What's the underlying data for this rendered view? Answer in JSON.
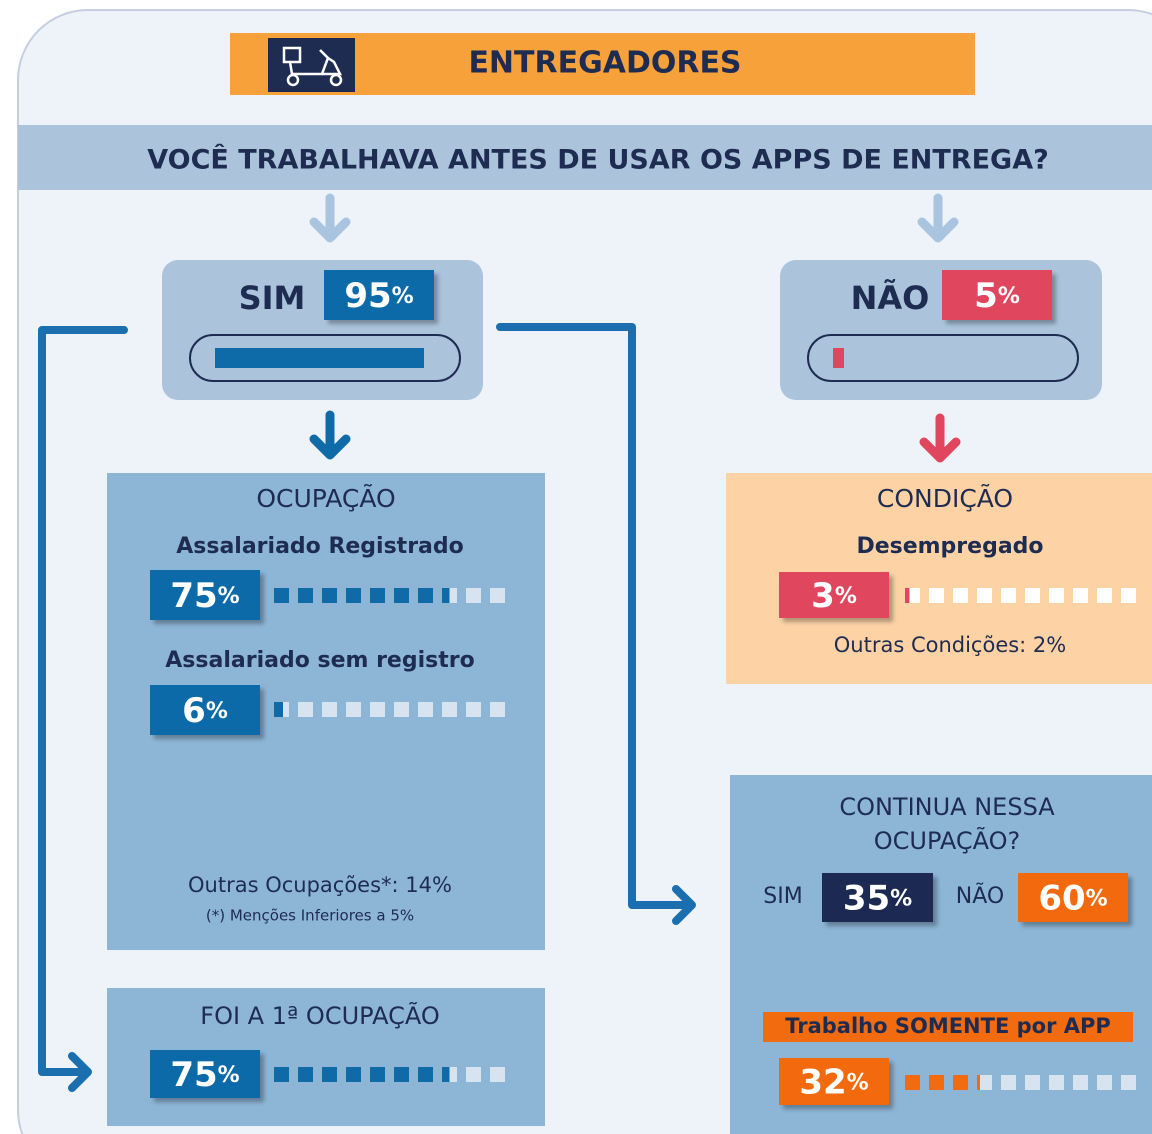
{
  "header": {
    "title": "ENTREGADORES"
  },
  "question": "VOCÊ TRABALHAVA ANTES DE USAR OS APPS DE ENTREGA?",
  "answers": [
    {
      "label": "SIM",
      "value": 95,
      "unit": "%"
    },
    {
      "label": "NÃO",
      "value": 5,
      "unit": "%"
    }
  ],
  "ocupacao": {
    "title": "OCUPAÇÃO",
    "items": [
      {
        "label": "Assalariado Registrado",
        "value": 75,
        "unit": "%"
      },
      {
        "label": "Assalariado sem registro",
        "value": 6,
        "unit": "%"
      }
    ],
    "other": "Outras Ocupações*: 14%",
    "footnote": "(*) Menções Inferiores a 5%"
  },
  "condicao": {
    "title": "CONDIÇÃO",
    "items": [
      {
        "label": "Desempregado",
        "value": 3,
        "unit": "%"
      }
    ],
    "other": "Outras Condições: 2%"
  },
  "primeira": {
    "title": "FOI A 1ª OCUPAÇÃO",
    "value": 75,
    "unit": "%"
  },
  "continua": {
    "title_lines": [
      "CONTINUA NESSA",
      "OCUPAÇÃO?"
    ],
    "options": [
      {
        "label": "SIM",
        "value": 35,
        "unit": "%"
      },
      {
        "label": "NÃO",
        "value": 60,
        "unit": "%"
      }
    ],
    "sub": {
      "title": "Trabalho SOMENTE por APP",
      "value": 32,
      "unit": "%"
    }
  }
}
